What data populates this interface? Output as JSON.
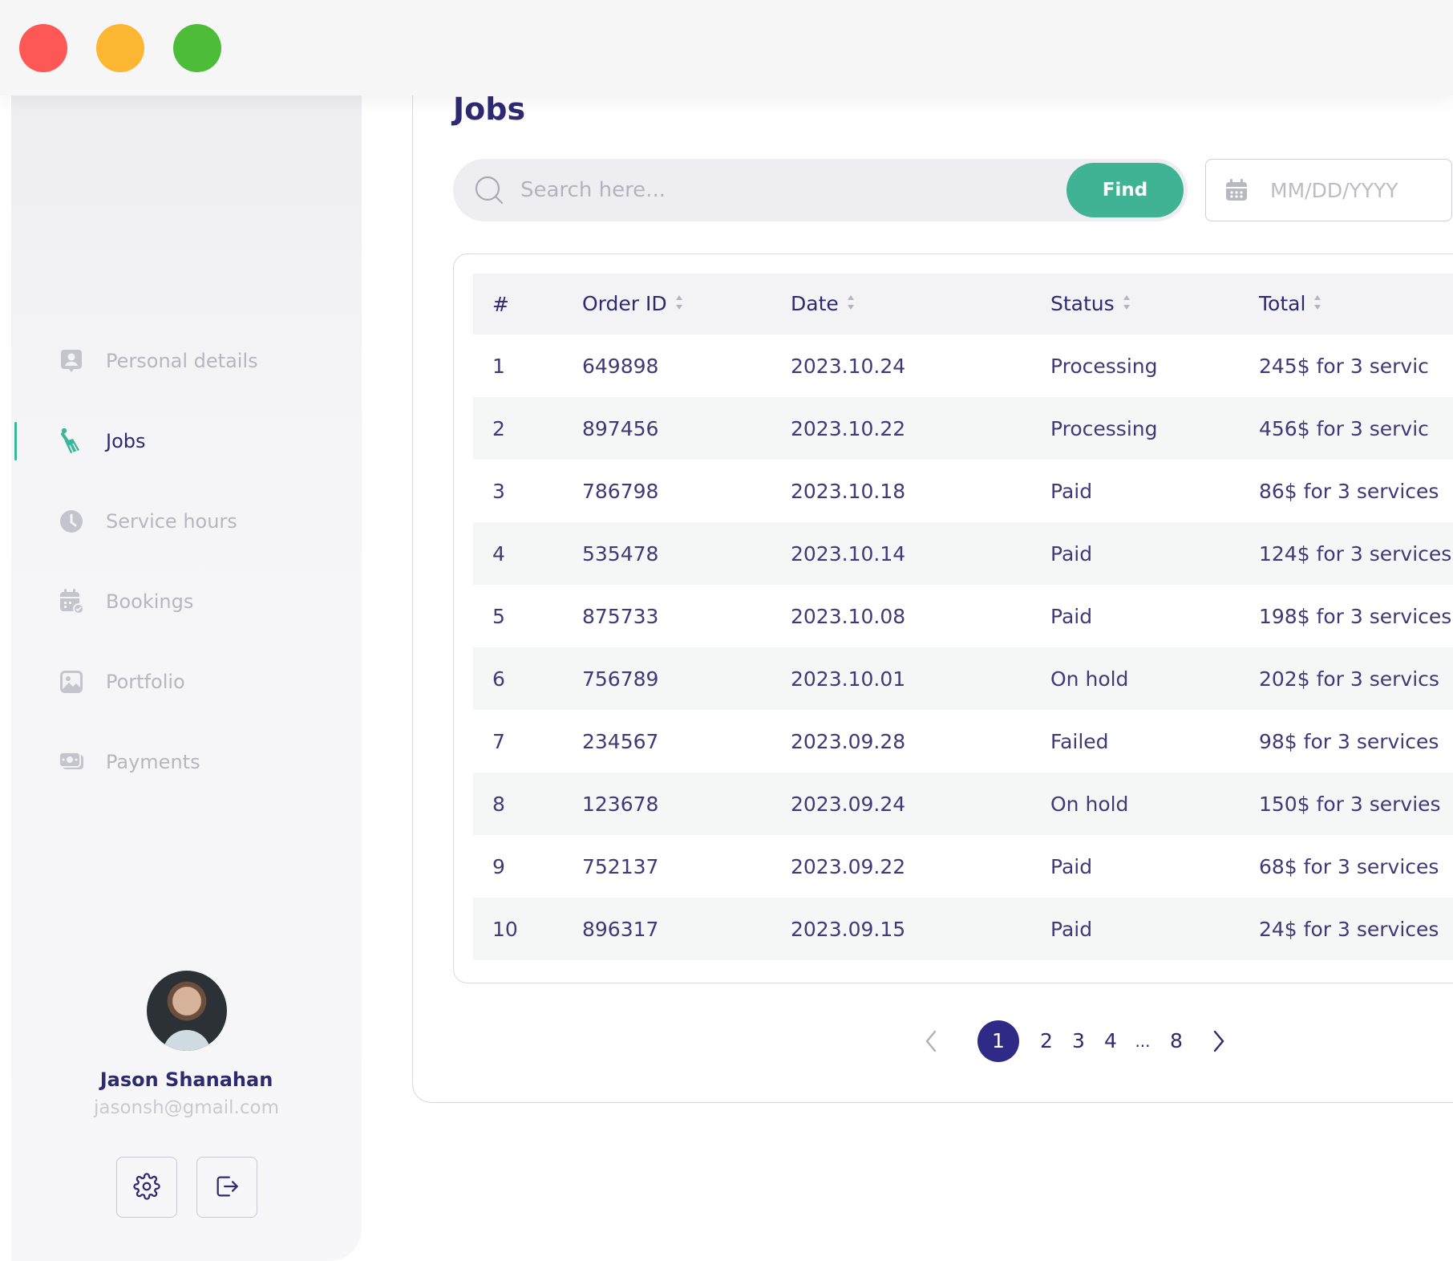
{
  "page": {
    "title": "Jobs"
  },
  "search": {
    "placeholder": "Search here...",
    "find_label": "Find"
  },
  "date_filter": {
    "placeholder": "MM/DD/YYYY"
  },
  "sidebar": {
    "items": [
      {
        "label": "Personal details",
        "icon": "person-card-icon",
        "active": false
      },
      {
        "label": "Jobs",
        "icon": "broom-icon",
        "active": true
      },
      {
        "label": "Service hours",
        "icon": "clock-icon",
        "active": false
      },
      {
        "label": "Bookings",
        "icon": "calendar-check-icon",
        "active": false
      },
      {
        "label": "Portfolio",
        "icon": "image-icon",
        "active": false
      },
      {
        "label": "Payments",
        "icon": "cash-icon",
        "active": false
      }
    ],
    "profile": {
      "name": "Jason Shanahan",
      "email": "jasonsh@gmail.com"
    }
  },
  "table": {
    "headers": [
      "#",
      "Order ID",
      "Date",
      "Status",
      "Total"
    ],
    "rows": [
      [
        "1",
        "649898",
        "2023.10.24",
        "Processing",
        "245$ for 3 servic"
      ],
      [
        "2",
        "897456",
        "2023.10.22",
        "Processing",
        "456$ for 3 servic"
      ],
      [
        "3",
        "786798",
        "2023.10.18",
        "Paid",
        "86$ for 3 services"
      ],
      [
        "4",
        "535478",
        "2023.10.14",
        "Paid",
        "124$ for 3 services"
      ],
      [
        "5",
        "875733",
        "2023.10.08",
        "Paid",
        "198$ for 3 services"
      ],
      [
        "6",
        "756789",
        "2023.10.01",
        "On hold",
        "202$ for 3 servics"
      ],
      [
        "7",
        "234567",
        "2023.09.28",
        "Failed",
        "98$ for 3 services"
      ],
      [
        "8",
        "123678",
        "2023.09.24",
        "On hold",
        "150$ for 3 servies"
      ],
      [
        "9",
        "752137",
        "2023.09.22",
        "Paid",
        "68$ for 3 services"
      ],
      [
        "10",
        "896317",
        "2023.09.15",
        "Paid",
        "24$ for 3 services"
      ]
    ]
  },
  "pagination": {
    "pages": [
      "1",
      "2",
      "3",
      "4",
      "...",
      "8"
    ],
    "current": "1"
  },
  "colors": {
    "accent": "#3fb394",
    "primary_text": "#2e2a72",
    "active_page": "#2f2a86",
    "muted": "#b6b6bf"
  }
}
